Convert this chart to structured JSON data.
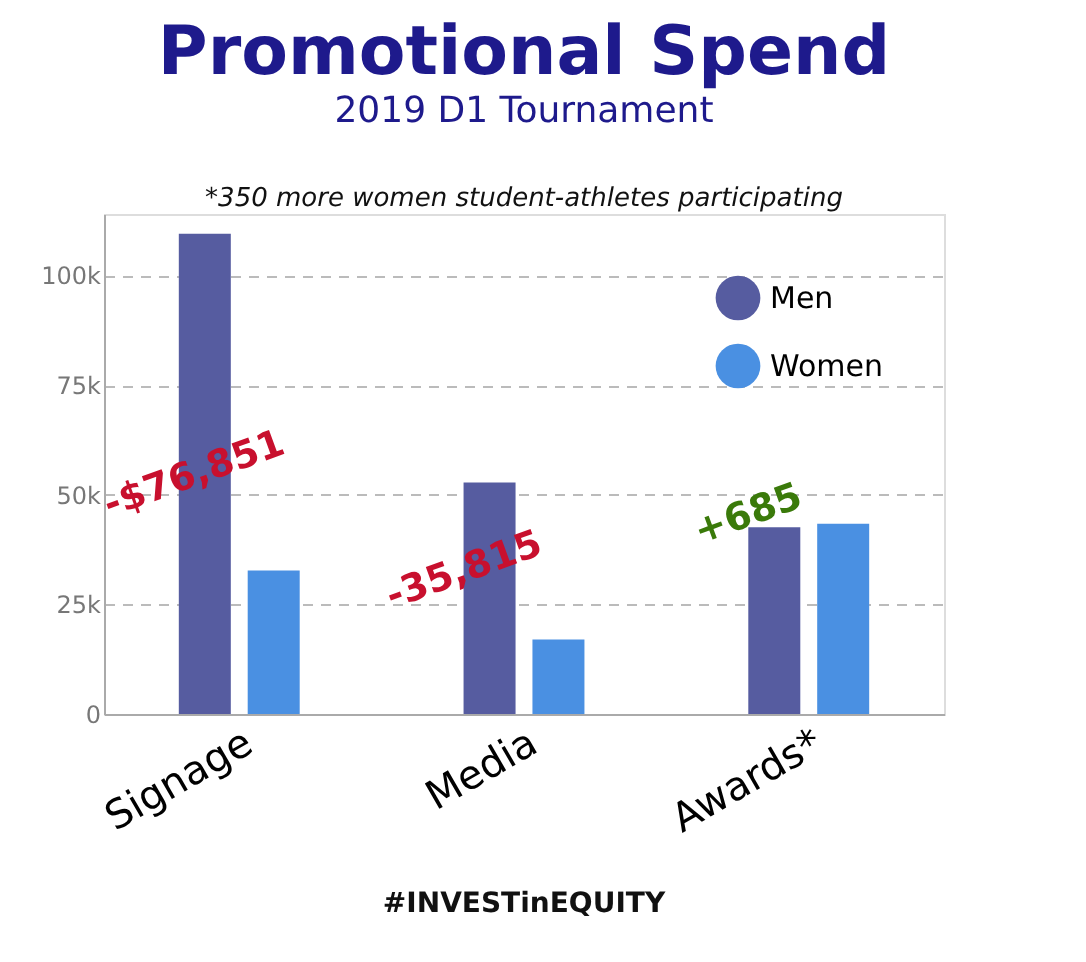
{
  "chart_data": {
    "type": "bar",
    "title": "Promotional Spend",
    "subtitle": "2019 D1 Tournament",
    "categories": [
      "Signage",
      "Media",
      "Awards*"
    ],
    "series": [
      {
        "name": "Men",
        "color": "#565ca0",
        "values": [
          109500,
          52800,
          42600
        ]
      },
      {
        "name": "Women",
        "color": "#4a90e2",
        "values": [
          32700,
          17000,
          43400
        ]
      }
    ],
    "ylim": [
      0,
      114000
    ],
    "yticks": [
      {
        "value": 0,
        "label": "0"
      },
      {
        "value": 25000,
        "label": "25k"
      },
      {
        "value": 50000,
        "label": "50k"
      },
      {
        "value": 75000,
        "label": "75k"
      },
      {
        "value": 100000,
        "label": "100k"
      }
    ],
    "grid": "y",
    "legend": "top right",
    "annotations": [
      "*350 more women student-athletes participating",
      "-$76,851",
      "-35,815",
      "+685",
      "#INVESTinEQUITY"
    ]
  }
}
